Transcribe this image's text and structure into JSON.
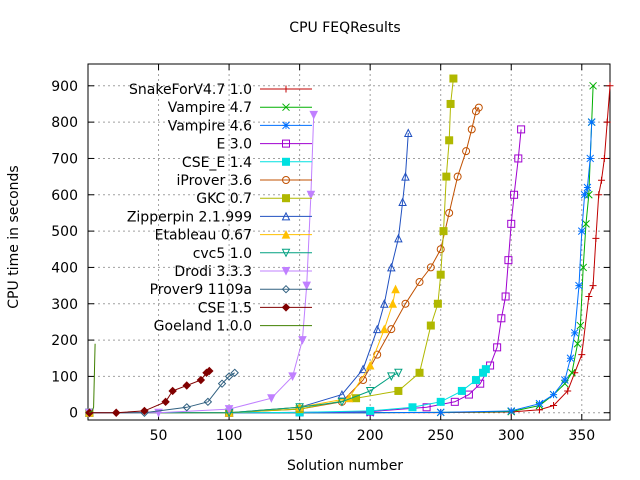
{
  "chart_data": {
    "type": "line",
    "title": "CPU FEQResults",
    "xlabel": "Solution number",
    "ylabel": "CPU time in seconds",
    "xlim": [
      0,
      370
    ],
    "ylim": [
      -20,
      960
    ],
    "x_ticks": [
      50,
      100,
      150,
      200,
      250,
      300,
      350
    ],
    "y_ticks": [
      0,
      100,
      200,
      300,
      400,
      500,
      600,
      700,
      800,
      900
    ],
    "x_tick_labels": [
      "50",
      "100",
      "150",
      "200",
      "250",
      "300",
      "350"
    ],
    "y_tick_labels": [
      "0",
      "100",
      "200",
      "300",
      "400",
      "500",
      "600",
      "700",
      "800",
      "900"
    ],
    "grid": true,
    "legend_position": "top-left",
    "series": [
      {
        "name": "SnakeForV4.7 1.0",
        "color": "#c00000",
        "marker": "plus",
        "points": [
          [
            1,
            0
          ],
          [
            100,
            0
          ],
          [
            200,
            0
          ],
          [
            250,
            0.5
          ],
          [
            300,
            2
          ],
          [
            320,
            8
          ],
          [
            330,
            20
          ],
          [
            340,
            60
          ],
          [
            345,
            110
          ],
          [
            350,
            160
          ],
          [
            355,
            320
          ],
          [
            358,
            350
          ],
          [
            360,
            480
          ],
          [
            362,
            600
          ],
          [
            364,
            640
          ],
          [
            366,
            700
          ],
          [
            368,
            800
          ],
          [
            370,
            900
          ]
        ]
      },
      {
        "name": "Vampire 4.7",
        "color": "#00b000",
        "marker": "x",
        "points": [
          [
            1,
            0
          ],
          [
            100,
            0
          ],
          [
            200,
            0
          ],
          [
            250,
            1
          ],
          [
            300,
            3
          ],
          [
            320,
            20
          ],
          [
            330,
            50
          ],
          [
            338,
            80
          ],
          [
            343,
            110
          ],
          [
            347,
            190
          ],
          [
            349,
            240
          ],
          [
            351,
            400
          ],
          [
            353,
            520
          ],
          [
            355,
            600
          ],
          [
            357,
            800
          ],
          [
            358,
            900
          ]
        ]
      },
      {
        "name": "Vampire 4.6",
        "color": "#0070ff",
        "marker": "star",
        "points": [
          [
            1,
            0
          ],
          [
            100,
            0
          ],
          [
            200,
            0
          ],
          [
            250,
            1
          ],
          [
            300,
            5
          ],
          [
            320,
            25
          ],
          [
            330,
            50
          ],
          [
            338,
            90
          ],
          [
            342,
            150
          ],
          [
            345,
            220
          ],
          [
            348,
            350
          ],
          [
            350,
            500
          ],
          [
            352,
            600
          ],
          [
            354,
            620
          ],
          [
            356,
            700
          ],
          [
            357,
            800
          ]
        ]
      },
      {
        "name": "E 3.0",
        "color": "#a000d0",
        "marker": "square",
        "points": [
          [
            1,
            0
          ],
          [
            100,
            0
          ],
          [
            150,
            1
          ],
          [
            200,
            3
          ],
          [
            240,
            15
          ],
          [
            260,
            30
          ],
          [
            270,
            50
          ],
          [
            278,
            80
          ],
          [
            285,
            130
          ],
          [
            290,
            180
          ],
          [
            293,
            260
          ],
          [
            296,
            320
          ],
          [
            298,
            420
          ],
          [
            300,
            520
          ],
          [
            302,
            600
          ],
          [
            305,
            700
          ],
          [
            307,
            780
          ]
        ]
      },
      {
        "name": "CSE_E 1.4",
        "color": "#00e0e0",
        "marker": "filled-square",
        "points": [
          [
            1,
            0
          ],
          [
            100,
            0
          ],
          [
            150,
            1
          ],
          [
            200,
            5
          ],
          [
            230,
            15
          ],
          [
            250,
            30
          ],
          [
            265,
            60
          ],
          [
            275,
            90
          ],
          [
            280,
            110
          ],
          [
            282,
            120
          ]
        ]
      },
      {
        "name": "iProver 3.6",
        "color": "#c05000",
        "marker": "circle",
        "points": [
          [
            1,
            0
          ],
          [
            100,
            0
          ],
          [
            150,
            10
          ],
          [
            180,
            30
          ],
          [
            195,
            90
          ],
          [
            205,
            160
          ],
          [
            215,
            230
          ],
          [
            225,
            300
          ],
          [
            235,
            360
          ],
          [
            243,
            400
          ],
          [
            250,
            450
          ],
          [
            256,
            550
          ],
          [
            262,
            650
          ],
          [
            268,
            720
          ],
          [
            272,
            780
          ],
          [
            275,
            830
          ],
          [
            277,
            840
          ]
        ]
      },
      {
        "name": "GKC 0.7",
        "color": "#b0b800",
        "marker": "filled-square",
        "points": [
          [
            1,
            0
          ],
          [
            100,
            0
          ],
          [
            150,
            10
          ],
          [
            190,
            40
          ],
          [
            220,
            60
          ],
          [
            235,
            110
          ],
          [
            243,
            240
          ],
          [
            248,
            300
          ],
          [
            250,
            380
          ],
          [
            252,
            500
          ],
          [
            254,
            650
          ],
          [
            256,
            750
          ],
          [
            257,
            850
          ],
          [
            259,
            920
          ]
        ]
      },
      {
        "name": "Zipperpin 2.1.999",
        "color": "#2050c0",
        "marker": "triangle",
        "points": [
          [
            1,
            0
          ],
          [
            100,
            0
          ],
          [
            150,
            15
          ],
          [
            180,
            50
          ],
          [
            195,
            120
          ],
          [
            205,
            230
          ],
          [
            210,
            300
          ],
          [
            215,
            400
          ],
          [
            220,
            480
          ],
          [
            223,
            580
          ],
          [
            225,
            650
          ],
          [
            227,
            770
          ]
        ]
      },
      {
        "name": "Etableau 0.67",
        "color": "#ffc000",
        "marker": "filled-triangle",
        "points": [
          [
            1,
            0
          ],
          [
            100,
            0
          ],
          [
            150,
            15
          ],
          [
            185,
            40
          ],
          [
            200,
            130
          ],
          [
            210,
            230
          ],
          [
            216,
            300
          ],
          [
            218,
            340
          ]
        ]
      },
      {
        "name": "cvc5 1.0",
        "color": "#00a080",
        "marker": "triangle-down",
        "points": [
          [
            1,
            0
          ],
          [
            100,
            0
          ],
          [
            150,
            15
          ],
          [
            180,
            30
          ],
          [
            200,
            60
          ],
          [
            215,
            100
          ],
          [
            220,
            110
          ]
        ]
      },
      {
        "name": "Drodi 3.3.3",
        "color": "#c080ff",
        "marker": "filled-triangle-down",
        "points": [
          [
            1,
            0
          ],
          [
            50,
            0
          ],
          [
            100,
            10
          ],
          [
            130,
            40
          ],
          [
            145,
            100
          ],
          [
            152,
            200
          ],
          [
            155,
            350
          ],
          [
            158,
            600
          ],
          [
            160,
            820
          ]
        ]
      },
      {
        "name": "Prover9 1109a",
        "color": "#306080",
        "marker": "diamond",
        "points": [
          [
            1,
            0
          ],
          [
            40,
            0
          ],
          [
            70,
            15
          ],
          [
            85,
            30
          ],
          [
            95,
            80
          ],
          [
            100,
            100
          ],
          [
            104,
            110
          ]
        ]
      },
      {
        "name": "CSE 1.5",
        "color": "#800000",
        "marker": "filled-diamond",
        "points": [
          [
            1,
            0
          ],
          [
            20,
            0
          ],
          [
            40,
            5
          ],
          [
            55,
            30
          ],
          [
            60,
            60
          ],
          [
            70,
            75
          ],
          [
            80,
            90
          ],
          [
            84,
            110
          ],
          [
            86,
            115
          ]
        ]
      },
      {
        "name": "Goeland 1.0.0",
        "color": "#408000",
        "marker": "none",
        "points": [
          [
            1,
            0
          ],
          [
            3,
            5
          ],
          [
            4,
            15
          ],
          [
            5,
            190
          ]
        ]
      }
    ]
  }
}
